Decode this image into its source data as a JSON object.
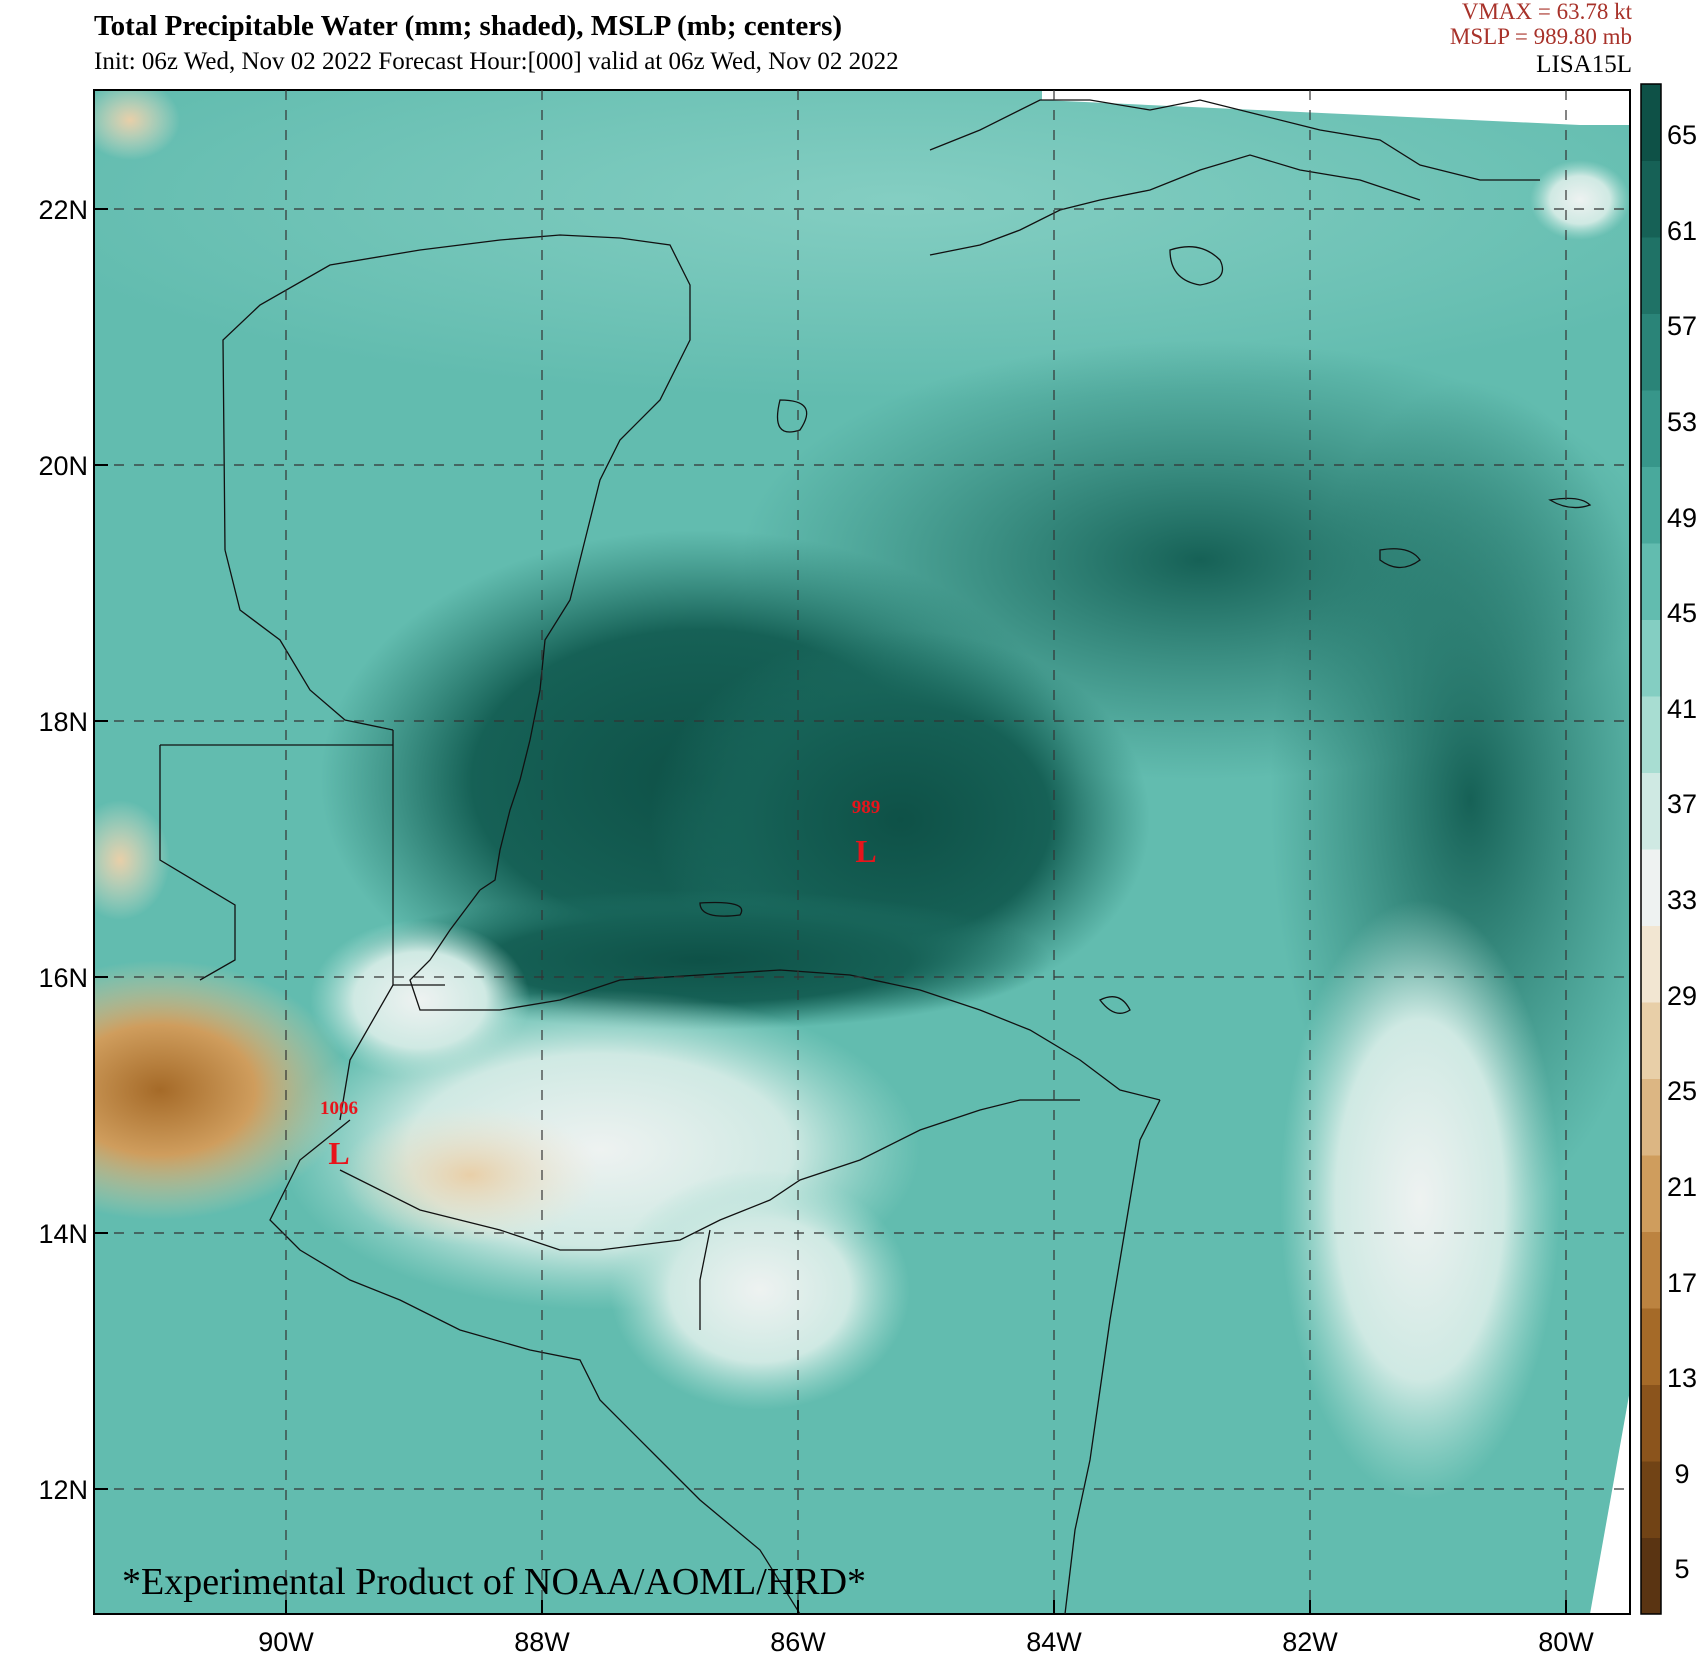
{
  "header": {
    "title": "Total Precipitable Water (mm; shaded), MSLP (mb; centers)",
    "subtitle": "Init: 06z Wed, Nov 02 2022  Forecast Hour:[000]  valid at 06z Wed, Nov 02 2022",
    "vmax": "VMAX =   63.78 kt",
    "mslp": "MSLP =  989.80 mb",
    "storm_name": "LISA15L"
  },
  "map": {
    "lon_range": [
      -91.5,
      -79.5
    ],
    "lat_range": [
      11.0,
      23.0
    ],
    "lat_labels": [
      "22N",
      "20N",
      "18N",
      "16N",
      "14N",
      "12N"
    ],
    "lon_labels": [
      "90W",
      "88W",
      "86W",
      "84W",
      "82W",
      "80W"
    ],
    "watermark": "*Experimental Product of NOAA/AOML/HRD*",
    "pressure_centers": [
      {
        "value": "989",
        "symbol": "L",
        "lon": -85.5,
        "lat": 17.0
      },
      {
        "value": "1006",
        "symbol": "L",
        "lon": -89.6,
        "lat": 14.6
      }
    ]
  },
  "colorbar": {
    "labels": [
      "65",
      "61",
      "57",
      "53",
      "49",
      "45",
      "41",
      "37",
      "33",
      "29",
      "25",
      "21",
      "17",
      "13",
      "9",
      "5"
    ],
    "colors": [
      "#5a3412",
      "#714315",
      "#8b541c",
      "#a56a28",
      "#bc8340",
      "#cf9d5d",
      "#dcb683",
      "#e8cfa8",
      "#f2e6d2",
      "#eef2f1",
      "#cfe9e3",
      "#a8ddd2",
      "#84cec2",
      "#62bcaf",
      "#49a99c",
      "#37968a",
      "#2a8478",
      "#1f7266",
      "#166156",
      "#0e5147"
    ]
  }
}
